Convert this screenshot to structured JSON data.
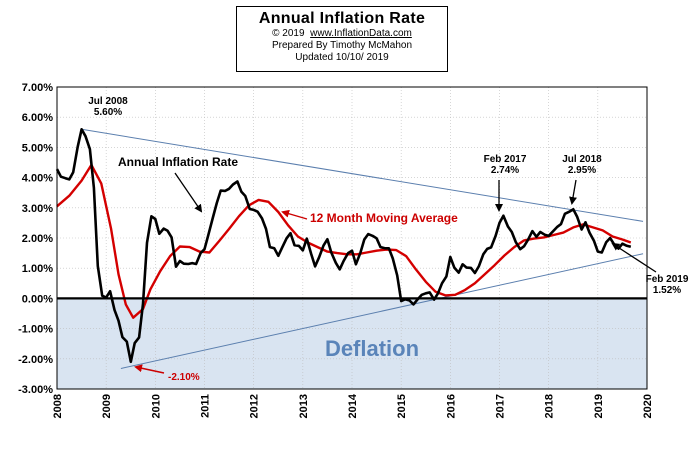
{
  "title_box": {
    "title": "Annual  Inflation Rate",
    "copyright_prefix": "© 2019",
    "website": "www.InflationData.com",
    "prepared": "Prepared  By Timothy McMahon",
    "updated": "Updated   10/10/ 2019"
  },
  "colors": {
    "annual_line": "#000000",
    "moving_average_line": "#d40000",
    "trend_lines": "#5b7fae",
    "deflation_fill": "#d9e4f1",
    "deflation_text": "#5a84b9",
    "grid": "#bdbdbd",
    "annotation_red": "#cc0000"
  },
  "chart_data": {
    "type": "line",
    "ylim": [
      -3,
      7
    ],
    "xlim": [
      2008,
      2020
    ],
    "y_ticks": [
      "-3.00%",
      "-2.00%",
      "-1.00%",
      "0.00%",
      "1.00%",
      "2.00%",
      "3.00%",
      "4.00%",
      "5.00%",
      "6.00%",
      "7.00%"
    ],
    "x_ticks": [
      "2008",
      "2009",
      "2010",
      "2011",
      "2012",
      "2013",
      "2014",
      "2015",
      "2016",
      "2017",
      "2018",
      "2019",
      "2020"
    ],
    "grid": true,
    "series": [
      {
        "name": "Annual Inflation Rate",
        "x": [
          2008.0,
          2008.08,
          2008.17,
          2008.25,
          2008.33,
          2008.42,
          2008.5,
          2008.58,
          2008.67,
          2008.75,
          2008.83,
          2008.92,
          2009.0,
          2009.08,
          2009.17,
          2009.25,
          2009.33,
          2009.42,
          2009.5,
          2009.58,
          2009.67,
          2009.75,
          2009.83,
          2009.92,
          2010.0,
          2010.08,
          2010.17,
          2010.25,
          2010.33,
          2010.42,
          2010.5,
          2010.58,
          2010.67,
          2010.75,
          2010.83,
          2010.92,
          2011.0,
          2011.08,
          2011.17,
          2011.25,
          2011.33,
          2011.42,
          2011.5,
          2011.58,
          2011.67,
          2011.75,
          2011.83,
          2011.92,
          2012.0,
          2012.08,
          2012.17,
          2012.25,
          2012.33,
          2012.42,
          2012.5,
          2012.58,
          2012.67,
          2012.75,
          2012.83,
          2012.92,
          2013.0,
          2013.08,
          2013.17,
          2013.25,
          2013.33,
          2013.42,
          2013.5,
          2013.58,
          2013.67,
          2013.75,
          2013.83,
          2013.92,
          2014.0,
          2014.08,
          2014.17,
          2014.25,
          2014.33,
          2014.42,
          2014.5,
          2014.58,
          2014.67,
          2014.75,
          2014.83,
          2014.92,
          2015.0,
          2015.08,
          2015.17,
          2015.25,
          2015.33,
          2015.42,
          2015.5,
          2015.58,
          2015.67,
          2015.75,
          2015.83,
          2015.92,
          2016.0,
          2016.08,
          2016.17,
          2016.25,
          2016.33,
          2016.42,
          2016.5,
          2016.58,
          2016.67,
          2016.75,
          2016.83,
          2016.92,
          2017.0,
          2017.08,
          2017.17,
          2017.25,
          2017.33,
          2017.42,
          2017.5,
          2017.58,
          2017.67,
          2017.75,
          2017.83,
          2017.92,
          2018.0,
          2018.08,
          2018.17,
          2018.25,
          2018.33,
          2018.42,
          2018.5,
          2018.58,
          2018.67,
          2018.75,
          2018.83,
          2018.92,
          2019.0,
          2019.08,
          2019.17,
          2019.25,
          2019.33,
          2019.42,
          2019.5,
          2019.58,
          2019.67
        ],
        "values": [
          4.28,
          4.03,
          3.98,
          3.94,
          4.18,
          5.02,
          5.6,
          5.37,
          4.94,
          3.66,
          1.07,
          0.09,
          0.03,
          0.24,
          -0.38,
          -0.74,
          -1.28,
          -1.43,
          -2.1,
          -1.48,
          -1.29,
          -0.18,
          1.84,
          2.72,
          2.63,
          2.14,
          2.31,
          2.24,
          2.02,
          1.05,
          1.24,
          1.15,
          1.14,
          1.17,
          1.14,
          1.5,
          1.63,
          2.11,
          2.68,
          3.16,
          3.57,
          3.56,
          3.63,
          3.77,
          3.87,
          3.53,
          3.39,
          2.96,
          2.93,
          2.87,
          2.65,
          2.3,
          1.7,
          1.66,
          1.41,
          1.69,
          1.99,
          2.16,
          1.76,
          1.74,
          1.59,
          1.98,
          1.47,
          1.06,
          1.36,
          1.75,
          1.96,
          1.52,
          1.18,
          0.96,
          1.24,
          1.5,
          1.58,
          1.13,
          1.51,
          1.95,
          2.13,
          2.07,
          1.99,
          1.7,
          1.66,
          1.66,
          1.32,
          0.76,
          -0.09,
          -0.03,
          -0.07,
          -0.2,
          -0.04,
          0.12,
          0.17,
          0.2,
          -0.04,
          0.17,
          0.5,
          0.73,
          1.37,
          1.02,
          0.85,
          1.13,
          1.02,
          1.01,
          0.84,
          1.06,
          1.46,
          1.64,
          1.69,
          2.07,
          2.5,
          2.74,
          2.38,
          2.2,
          1.87,
          1.63,
          1.73,
          1.94,
          2.23,
          2.04,
          2.2,
          2.11,
          2.07,
          2.21,
          2.36,
          2.46,
          2.8,
          2.87,
          2.95,
          2.7,
          2.28,
          2.52,
          2.18,
          1.91,
          1.55,
          1.52,
          1.86,
          2.0,
          1.79,
          1.65,
          1.81,
          1.75,
          1.71
        ]
      },
      {
        "name": "12 Month Moving Average",
        "x": [
          2008.0,
          2008.25,
          2008.5,
          2008.7,
          2008.9,
          2009.1,
          2009.25,
          2009.4,
          2009.55,
          2009.75,
          2009.9,
          2010.1,
          2010.3,
          2010.5,
          2010.7,
          2010.9,
          2011.1,
          2011.3,
          2011.5,
          2011.7,
          2011.9,
          2012.1,
          2012.3,
          2012.5,
          2012.7,
          2012.9,
          2013.1,
          2013.3,
          2013.5,
          2013.7,
          2013.9,
          2014.1,
          2014.3,
          2014.5,
          2014.7,
          2014.9,
          2015.1,
          2015.3,
          2015.5,
          2015.7,
          2015.9,
          2016.1,
          2016.3,
          2016.5,
          2016.7,
          2016.9,
          2017.1,
          2017.3,
          2017.5,
          2017.7,
          2017.9,
          2018.1,
          2018.3,
          2018.5,
          2018.7,
          2018.9,
          2019.1,
          2019.3,
          2019.5,
          2019.67
        ],
        "values": [
          3.05,
          3.4,
          3.9,
          4.42,
          3.8,
          2.3,
          0.8,
          -0.2,
          -0.64,
          -0.35,
          0.3,
          0.9,
          1.4,
          1.72,
          1.7,
          1.55,
          1.52,
          1.9,
          2.3,
          2.72,
          3.08,
          3.26,
          3.2,
          2.86,
          2.42,
          2.05,
          1.85,
          1.7,
          1.55,
          1.5,
          1.46,
          1.46,
          1.52,
          1.58,
          1.62,
          1.6,
          1.4,
          0.96,
          0.55,
          0.22,
          0.1,
          0.12,
          0.28,
          0.5,
          0.8,
          1.1,
          1.42,
          1.7,
          1.92,
          1.98,
          2.02,
          2.1,
          2.18,
          2.35,
          2.45,
          2.35,
          2.25,
          2.05,
          1.95,
          1.85
        ]
      }
    ],
    "trend_lines": [
      {
        "from": [
          2008.5,
          5.6
        ],
        "to": [
          2019.92,
          2.55
        ]
      },
      {
        "from": [
          2009.3,
          -2.32
        ],
        "to": [
          2019.92,
          1.48
        ]
      }
    ],
    "deflation_region": {
      "from": 0,
      "to": -3
    }
  },
  "labels": {
    "jul2008": {
      "title": "Jul 2008",
      "value": "5.60%"
    },
    "feb2017": {
      "title": "Feb 2017",
      "value": "2.74%"
    },
    "jul2018": {
      "title": "Jul 2018",
      "value": "2.95%"
    },
    "feb2019": {
      "title": "Feb 2019",
      "value": "1.52%"
    },
    "low": "-2.10%",
    "annual_series": "Annual Inflation Rate",
    "moving_average": "12 Month Moving Average",
    "deflation": "Deflation"
  }
}
